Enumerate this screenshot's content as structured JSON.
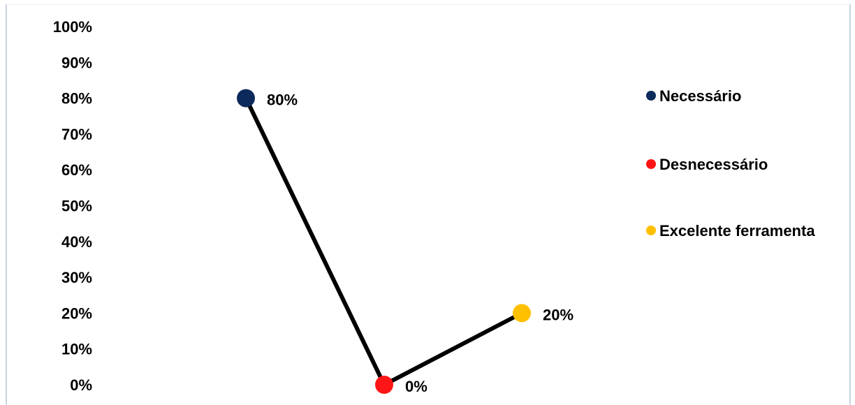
{
  "chart_data": {
    "type": "line",
    "categories": [
      "Necessário",
      "Desnecessário",
      "Excelente ferramenta"
    ],
    "values": [
      80,
      0,
      20
    ],
    "data_labels": [
      "80%",
      "0%",
      "20%"
    ],
    "point_colors": [
      "#0c2a5c",
      "#ff1515",
      "#ffc000"
    ],
    "line_color": "#000000",
    "ylim": [
      0,
      100
    ],
    "y_ticks": [
      "0%",
      "10%",
      "20%",
      "30%",
      "40%",
      "50%",
      "60%",
      "70%",
      "80%",
      "90%",
      "100%"
    ],
    "legend_position": "right",
    "grid": false
  }
}
